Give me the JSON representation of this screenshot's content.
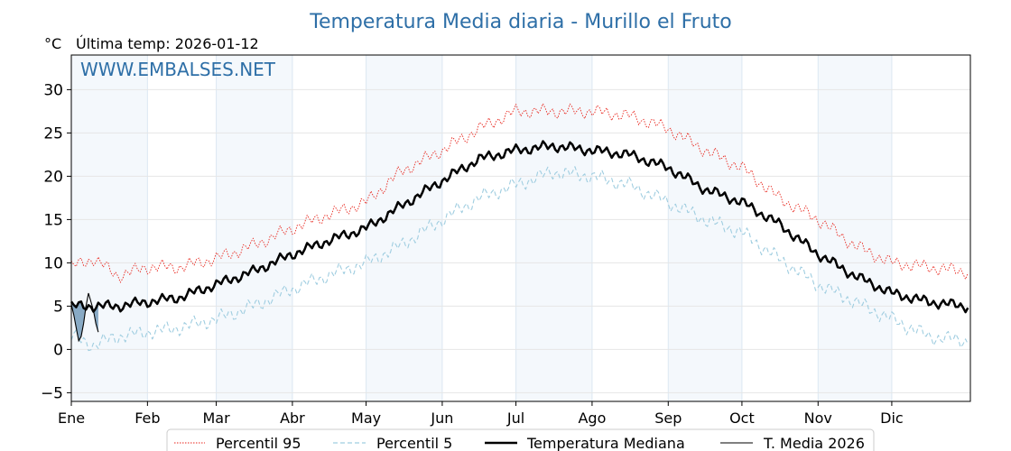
{
  "chart_data": {
    "type": "line",
    "title": "Temperatura Media diaria - Murillo el Fruto",
    "subtitle": "Última temp: 2026-01-12",
    "ylabel": "°C",
    "watermark": "WWW.EMBALSES.NET",
    "ylim": [
      -6,
      34
    ],
    "yticks": [
      -5,
      0,
      5,
      10,
      15,
      20,
      25,
      30
    ],
    "grid": true,
    "legend_position": "bottom-center",
    "months": [
      "Ene",
      "Feb",
      "Mar",
      "Abr",
      "May",
      "Jun",
      "Jul",
      "Ago",
      "Sep",
      "Oct",
      "Nov",
      "Dic"
    ],
    "month_start_days": [
      1,
      32,
      60,
      91,
      121,
      152,
      182,
      213,
      244,
      274,
      305,
      335
    ],
    "x_days": [
      1,
      10,
      20,
      32,
      45,
      60,
      75,
      91,
      105,
      121,
      135,
      152,
      167,
      182,
      197,
      213,
      228,
      244,
      259,
      274,
      289,
      305,
      320,
      335,
      350,
      365
    ],
    "series": [
      {
        "name": "Percentil 95",
        "color": "#e8251c",
        "style": "dotted",
        "values": [
          9.5,
          10.5,
          8.5,
          9.5,
          9.5,
          10.5,
          12.0,
          14.0,
          15.5,
          17.0,
          20.5,
          23.0,
          25.5,
          27.5,
          27.5,
          27.5,
          27.0,
          25.5,
          23.0,
          21.0,
          17.5,
          15.0,
          12.0,
          10.0,
          9.5,
          9.0
        ]
      },
      {
        "name": "Percentil 5",
        "color": "#9fcde0",
        "style": "dashed",
        "values": [
          1.5,
          0.5,
          1.5,
          2.0,
          2.5,
          3.5,
          5.0,
          7.0,
          8.5,
          10.0,
          12.0,
          15.0,
          17.5,
          19.0,
          20.5,
          20.0,
          19.0,
          17.0,
          15.0,
          13.5,
          10.5,
          7.5,
          5.5,
          3.5,
          1.5,
          1.0
        ]
      },
      {
        "name": "Temperatura Mediana",
        "color": "#000000",
        "style": "solid-thick",
        "values": [
          5.0,
          5.0,
          5.0,
          5.5,
          6.0,
          7.5,
          9.0,
          11.0,
          12.5,
          14.0,
          16.5,
          19.5,
          22.0,
          23.0,
          23.5,
          23.0,
          22.5,
          21.0,
          18.5,
          17.0,
          14.5,
          11.0,
          8.5,
          6.5,
          5.5,
          5.0
        ]
      },
      {
        "name": "T. Media 2026",
        "color": "#000000",
        "style": "solid-thin",
        "x_days": [
          1,
          2,
          3,
          4,
          5,
          6,
          7,
          8,
          9,
          10,
          11,
          12
        ],
        "values": [
          5.2,
          4.0,
          2.5,
          1.0,
          1.5,
          3.0,
          5.0,
          6.5,
          5.5,
          4.5,
          3.0,
          2.0
        ]
      }
    ]
  }
}
